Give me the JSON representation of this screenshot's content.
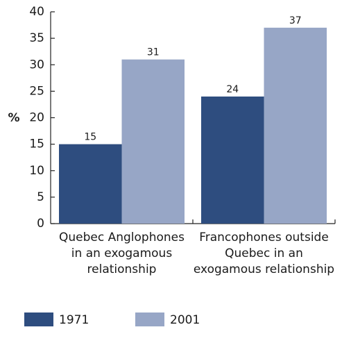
{
  "chart_data": {
    "type": "bar",
    "y_label": "%",
    "categories": [
      "Quebec Anglophones\nin an exogamous\nrelationship",
      "Francophones outside\nQuebec in an\nexogamous relationship"
    ],
    "series": [
      {
        "name": "1971",
        "color": "#2e4d7f",
        "values": [
          15,
          24
        ]
      },
      {
        "name": "2001",
        "color": "#97a6c6",
        "values": [
          31,
          37
        ]
      }
    ],
    "ylim": [
      0,
      40
    ],
    "yticks": [
      0,
      5,
      10,
      15,
      20,
      25,
      30,
      35,
      40
    ],
    "legend": "bottom"
  }
}
